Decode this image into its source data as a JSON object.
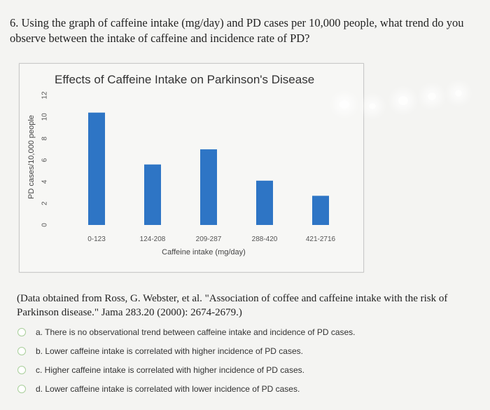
{
  "question": {
    "text": "6. Using the graph of caffeine intake (mg/day) and PD cases per 10,000 people, what trend do you observe between the intake of caffeine and incidence rate of PD?"
  },
  "chart_data": {
    "type": "bar",
    "title": "Effects of Caffeine Intake on Parkinson's Disease",
    "xlabel": "Caffeine intake (mg/day)",
    "ylabel": "PD cases/10,000 people",
    "categories": [
      "0-123",
      "124-208",
      "209-287",
      "288-420",
      "421-2716"
    ],
    "values": [
      10.4,
      5.6,
      7.0,
      4.1,
      2.7
    ],
    "ylim": [
      0,
      12
    ],
    "yticks": [
      0,
      2,
      4,
      6,
      8,
      10,
      12
    ],
    "grid": false,
    "bar_color": "#2e75c5"
  },
  "citation": {
    "text": "(Data obtained from Ross, G. Webster, et al. \"Association of coffee and caffeine intake with the risk of Parkinson disease.\" Jama 283.20 (2000): 2674-2679.)"
  },
  "options": [
    {
      "label": "a. There is no observational trend between caffeine intake and incidence of PD cases."
    },
    {
      "label": "b. Lower caffeine intake is correlated with higher incidence of PD cases."
    },
    {
      "label": "c. Higher caffeine intake is correlated with higher incidence of PD cases."
    },
    {
      "label": "d. Lower caffeine intake is correlated with lower incidence of PD cases."
    }
  ],
  "colors": {
    "radio_border": "#a9cf9b",
    "background": "#f4f4f2"
  }
}
